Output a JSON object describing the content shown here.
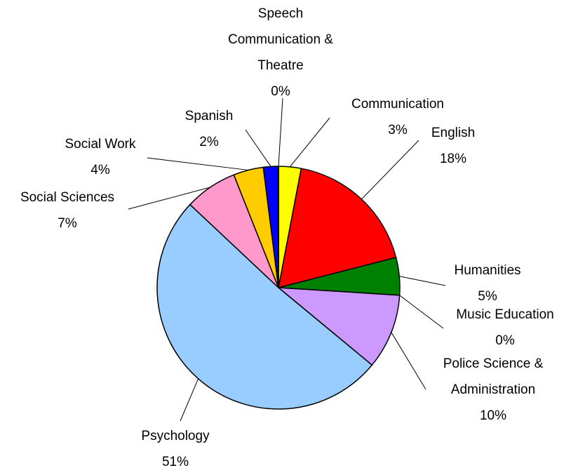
{
  "chart_data": {
    "type": "pie",
    "categories": [
      "Communication",
      "English",
      "Humanities",
      "Music Education",
      "Police Science &\nAdministration",
      "Psychology",
      "Social Sciences",
      "Social Work",
      "Spanish",
      "Speech\nCommunication &\nTheatre"
    ],
    "values": [
      3,
      18,
      5,
      0,
      10,
      51,
      7,
      4,
      2,
      0
    ],
    "value_labels": [
      "3%",
      "18%",
      "5%",
      "0%",
      "10%",
      "51%",
      "7%",
      "4%",
      "2%",
      "0%"
    ],
    "colors": [
      "#ffff00",
      "#ff0000",
      "#008000",
      "#ffffcc",
      "#cc99ff",
      "#99ccff",
      "#ff99cc",
      "#ffcc00",
      "#0000ff",
      "#00ffff"
    ]
  }
}
